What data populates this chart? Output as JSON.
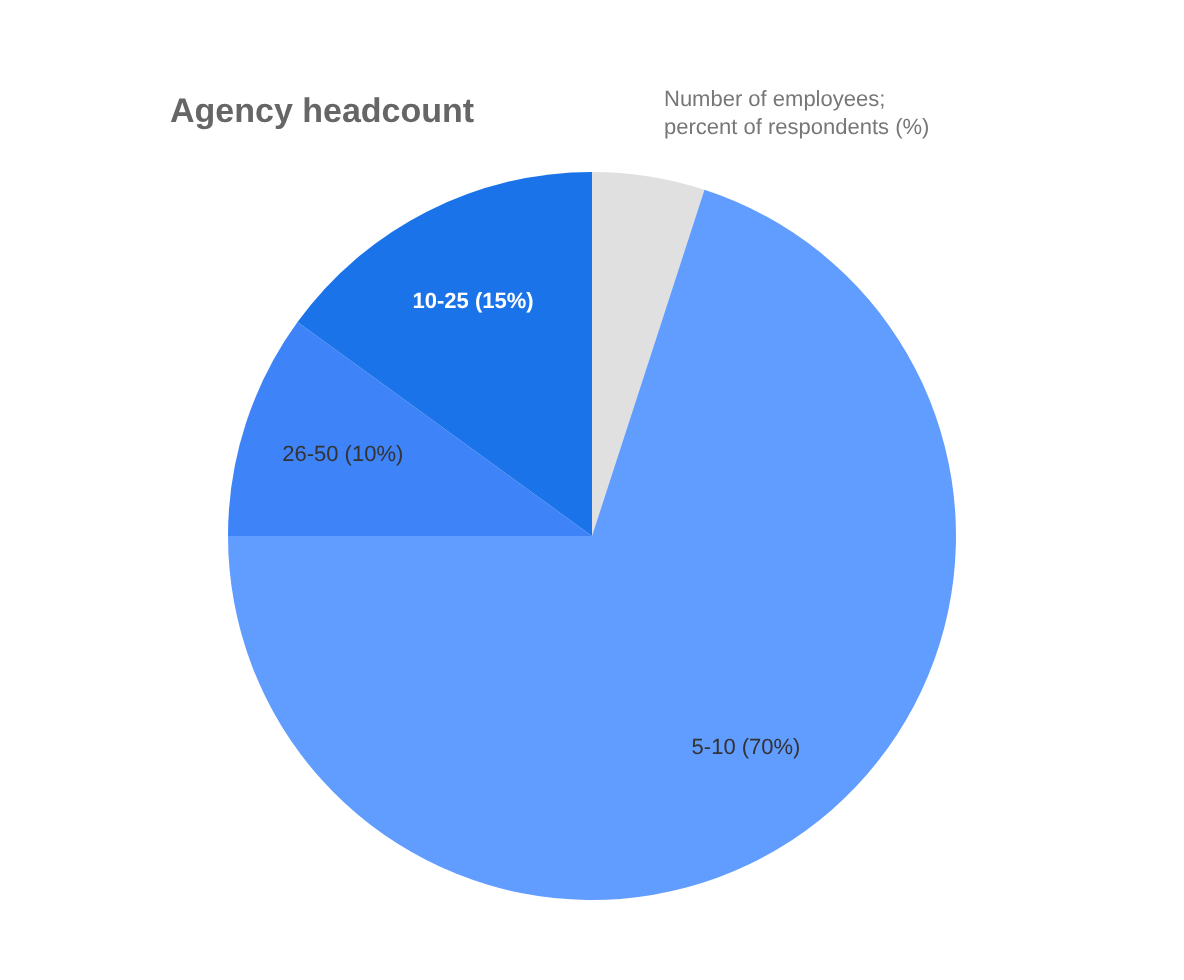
{
  "chart_data": {
    "type": "pie",
    "title": "Agency headcount",
    "subtitle": "Number of employees;\npercent of respondents (%)",
    "categories": [
      null,
      "5-10",
      "26-50",
      "10-25"
    ],
    "values": [
      5,
      70,
      10,
      15
    ],
    "colors": [
      "#e0e0e0",
      "#619cff",
      "#3f83f8",
      "#1a73e8"
    ],
    "value_labels": [
      null,
      "(70%)",
      "(10%)",
      "(15%)"
    ]
  }
}
